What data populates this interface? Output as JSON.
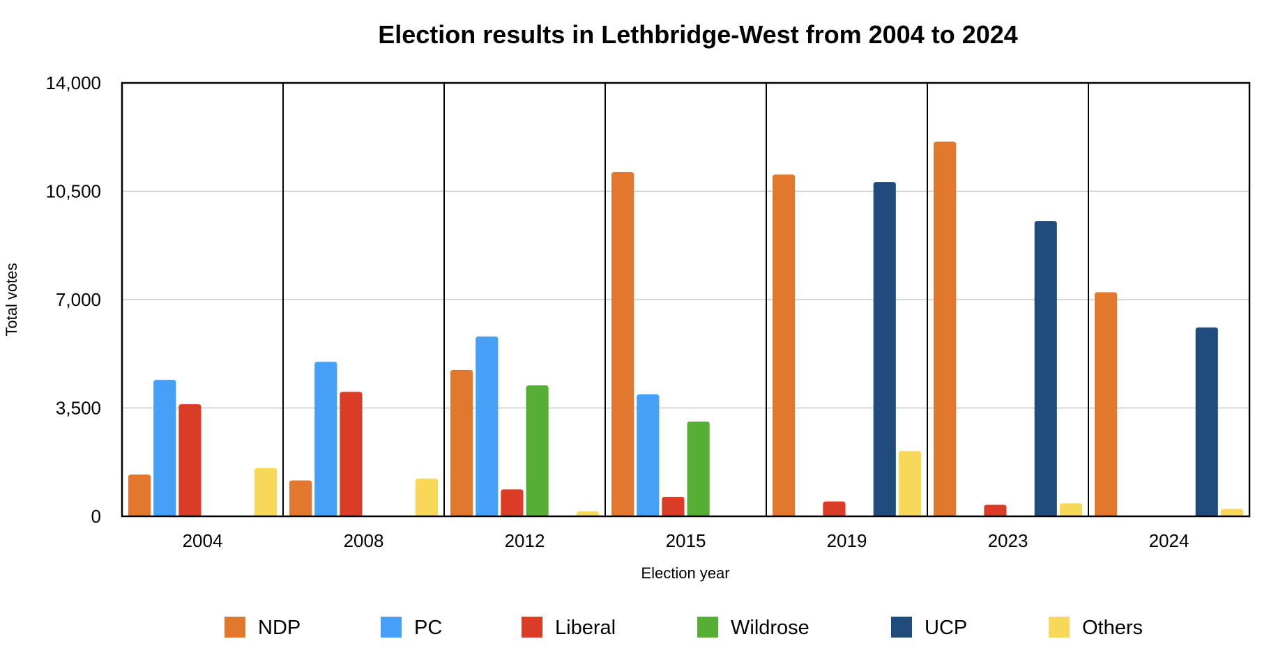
{
  "chart_data": {
    "type": "bar",
    "title": "Election results in Lethbridge-West from 2004 to 2024",
    "xlabel": "Election year",
    "ylabel": "Total votes",
    "ylim": [
      0,
      14000
    ],
    "yticks": [
      0,
      3500,
      7000,
      10500,
      14000
    ],
    "ytick_labels": [
      "0",
      "3,500",
      "7,000",
      "10,500",
      "14,000"
    ],
    "grid": true,
    "legend_position": "bottom",
    "categories": [
      "2004",
      "2008",
      "2012",
      "2015",
      "2019",
      "2023",
      "2024"
    ],
    "series": [
      {
        "name": "NDP",
        "color": "#E2782E",
        "values": [
          1350,
          1160,
          4730,
          11120,
          11040,
          12100,
          7240
        ]
      },
      {
        "name": "PC",
        "color": "#47A0F7",
        "values": [
          4410,
          4990,
          5810,
          3940,
          null,
          null,
          null
        ]
      },
      {
        "name": "Liberal",
        "color": "#DA3C28",
        "values": [
          3620,
          4020,
          870,
          630,
          480,
          370,
          null
        ]
      },
      {
        "name": "Wildrose",
        "color": "#56AE34",
        "values": [
          null,
          null,
          4230,
          3060,
          null,
          null,
          null
        ]
      },
      {
        "name": "UCP",
        "color": "#1F4C7D",
        "values": [
          null,
          null,
          null,
          null,
          10800,
          9540,
          6100
        ]
      },
      {
        "name": "Others",
        "color": "#F7D859",
        "values": [
          1560,
          1220,
          160,
          null,
          2110,
          420,
          240
        ]
      }
    ]
  }
}
